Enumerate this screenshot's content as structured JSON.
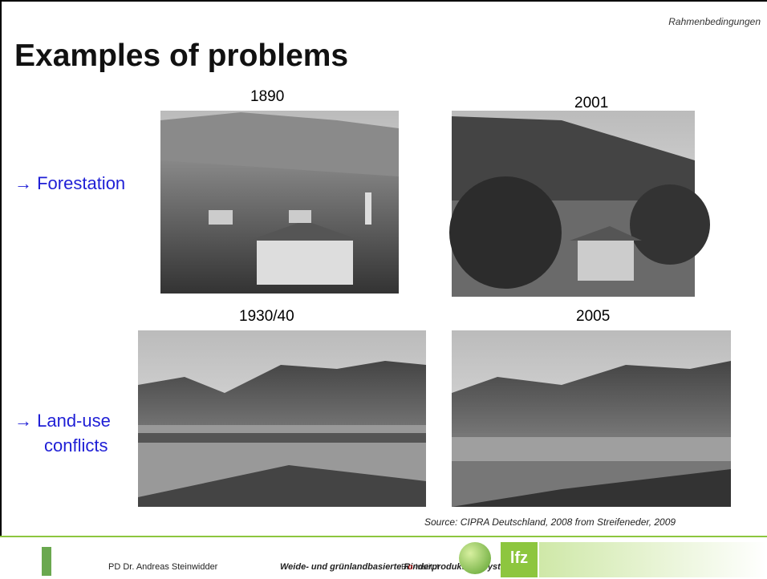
{
  "header": {
    "section": "Rahmenbedingungen",
    "title": "Examples of problems"
  },
  "rows": [
    {
      "label": "→ Forestation",
      "photos": [
        {
          "year": "1890"
        },
        {
          "year": "2001"
        }
      ]
    },
    {
      "label": [
        "→ Land-use",
        "conflicts"
      ],
      "photos": [
        {
          "year": "1930/40"
        },
        {
          "year": "2005"
        }
      ]
    }
  ],
  "source": "Source: CIPRA Deutschland, 2008 from Streifeneder, 2009",
  "footer": {
    "author": "PD Dr. Andreas Steinwidder",
    "project": "Weide- und grünlandbasierte Rinderproduktionssysteme",
    "institute": [
      "Bi",
      "o",
      "-Institut"
    ],
    "logo_text": "lfz"
  }
}
